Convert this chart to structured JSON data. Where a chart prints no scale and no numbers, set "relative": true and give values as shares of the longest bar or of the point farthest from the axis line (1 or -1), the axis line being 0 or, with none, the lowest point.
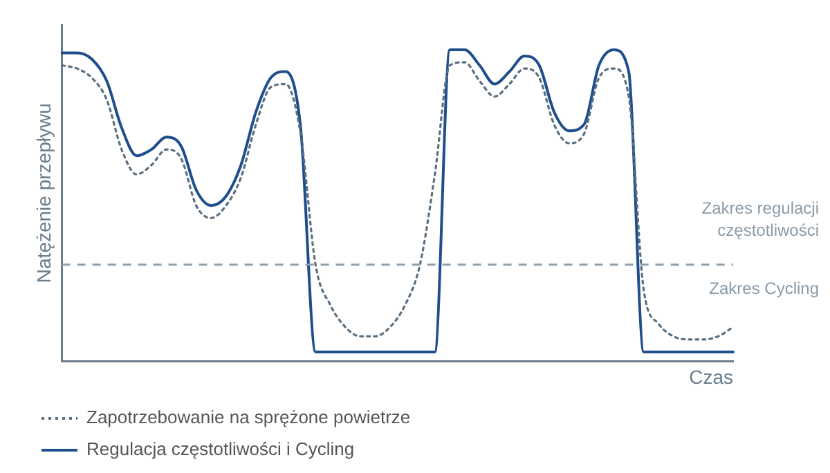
{
  "chart_data": {
    "type": "line",
    "relative": true,
    "ylabel": "Natężenie przepływu",
    "xlabel": "Czas",
    "categories": [
      null,
      null,
      null,
      null,
      null,
      null,
      null,
      null,
      null,
      null,
      null,
      null,
      null,
      null,
      null,
      null,
      null,
      null,
      null,
      null,
      null,
      null,
      null,
      null,
      null,
      null,
      null,
      null,
      null,
      null,
      null,
      null,
      null,
      null,
      null,
      null,
      null,
      null,
      null,
      null,
      null,
      null,
      null,
      null,
      null,
      null
    ],
    "series": [
      {
        "name": "Zapotrzebowanie na sprężone powietrze",
        "color": "#5a6f80",
        "line_style": "dotted",
        "values": [
          0.95,
          0.94,
          0.91,
          0.84,
          0.68,
          0.6,
          0.63,
          0.68,
          0.65,
          0.5,
          0.46,
          0.5,
          0.59,
          0.76,
          0.88,
          0.89,
          0.73,
          0.31,
          0.18,
          0.11,
          0.08,
          0.08,
          0.11,
          0.18,
          0.31,
          0.6,
          0.95,
          0.96,
          0.9,
          0.85,
          0.89,
          0.94,
          0.91,
          0.76,
          0.7,
          0.73,
          0.91,
          0.94,
          0.85,
          0.23,
          0.12,
          0.08,
          0.07,
          0.07,
          0.08,
          0.11
        ]
      },
      {
        "name": "Regulacja częstotliwości i Cycling",
        "color": "#1f4e8c",
        "line_style": "solid",
        "values": [
          0.99,
          0.99,
          0.97,
          0.9,
          0.75,
          0.66,
          0.68,
          0.72,
          0.69,
          0.55,
          0.5,
          0.53,
          0.63,
          0.8,
          0.91,
          0.93,
          0.75,
          0.03,
          0.03,
          0.03,
          0.03,
          0.03,
          0.03,
          0.03,
          0.03,
          0.03,
          1,
          1,
          0.95,
          0.89,
          0.93,
          0.98,
          0.95,
          0.8,
          0.74,
          0.76,
          0.95,
          1,
          0.93,
          0.03,
          0.03,
          0.03,
          0.03,
          0.03,
          0.03,
          0.03
        ]
      }
    ],
    "ref_lines": [
      {
        "axis": "y",
        "value": 0.31,
        "line_style": "dashed",
        "color": "#8fa0ad"
      }
    ],
    "annotations": [
      "Zakres regulacji częstotliwości",
      "Zakres Cycling"
    ],
    "grid": false,
    "legend": "bottom left",
    "tick_labels": false,
    "marker": "none"
  }
}
